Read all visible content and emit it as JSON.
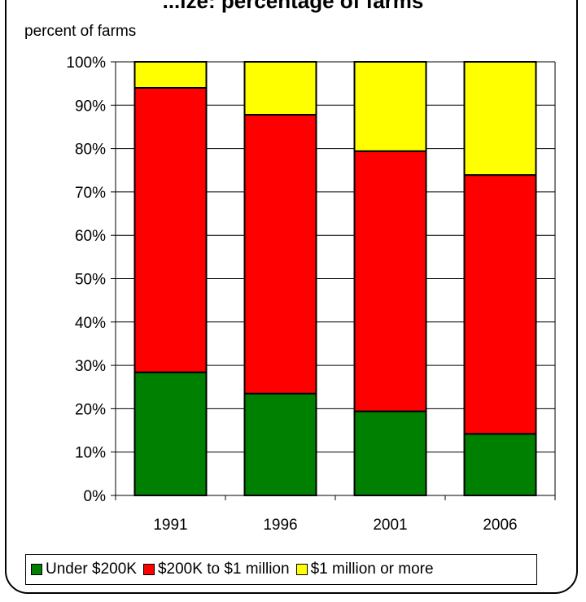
{
  "chart_data": {
    "type": "bar",
    "stacked": true,
    "title": "",
    "ylabel": "percent of farms",
    "xlabel": "",
    "categories": [
      "1991",
      "1996",
      "2001",
      "2006"
    ],
    "ylim": [
      0,
      100
    ],
    "yticks": [
      "0%",
      "10%",
      "20%",
      "30%",
      "40%",
      "50%",
      "60%",
      "70%",
      "80%",
      "90%",
      "100%"
    ],
    "grid": true,
    "legend_position": "bottom",
    "series": [
      {
        "name": "Under $200K",
        "color": "#008000",
        "values": [
          28.4,
          23.5,
          19.4,
          14.2
        ]
      },
      {
        "name": "$200K to $1 million",
        "color": "#ff0000",
        "values": [
          65.6,
          64.3,
          60.0,
          59.7
        ]
      },
      {
        "name": "$1 million or more",
        "color": "#ffff00",
        "values": [
          6.0,
          12.2,
          20.6,
          26.1
        ]
      }
    ]
  },
  "page": {
    "title_visible": "...ize: percentage of farms"
  }
}
